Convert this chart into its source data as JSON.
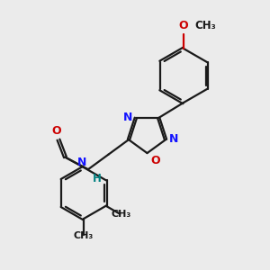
{
  "bg_color": "#ebebeb",
  "bond_color": "#1a1a1a",
  "nitrogen_color": "#1414ff",
  "oxygen_color": "#cc0000",
  "nh_color": "#008080",
  "lw": 1.6,
  "dbo": 0.055,
  "xlim": [
    0,
    10
  ],
  "ylim": [
    0,
    10
  ]
}
